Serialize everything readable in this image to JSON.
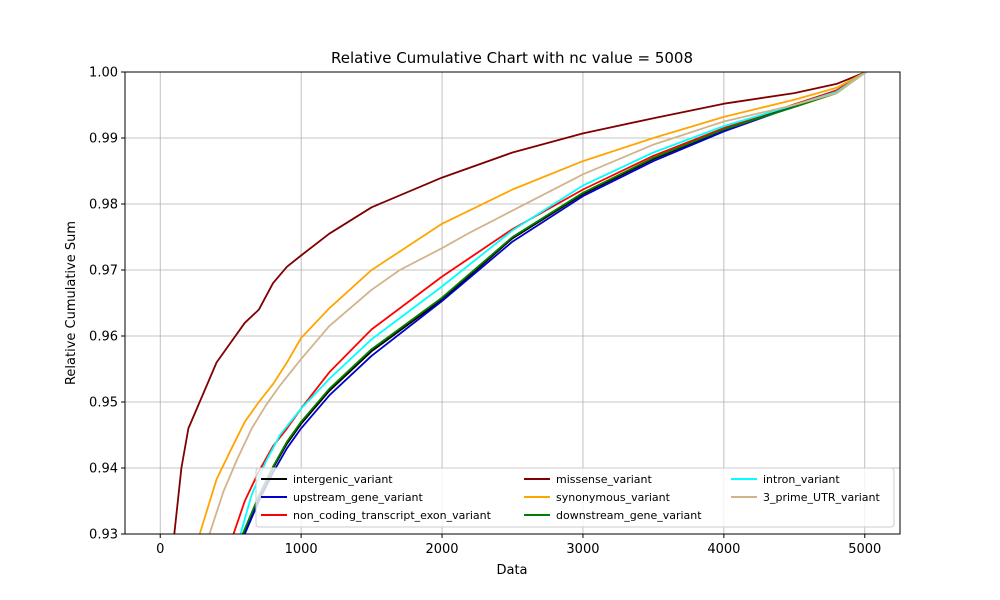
{
  "chart_data": {
    "type": "line",
    "title": "Relative Cumulative Chart with nc value = 5008",
    "xlabel": "Data",
    "ylabel": "Relative Cumulative Sum",
    "xlim": [
      -250,
      5250
    ],
    "ylim": [
      0.93,
      1.0
    ],
    "xticks": [
      0,
      1000,
      2000,
      3000,
      4000,
      5000
    ],
    "xtick_labels": [
      "0",
      "1000",
      "2000",
      "3000",
      "4000",
      "5000"
    ],
    "yticks": [
      0.93,
      0.94,
      0.95,
      0.96,
      0.97,
      0.98,
      0.99,
      1.0
    ],
    "ytick_labels": [
      "0.93",
      "0.94",
      "0.95",
      "0.96",
      "0.97",
      "0.98",
      "0.99",
      "1.00"
    ],
    "grid": true,
    "legend_location": "lower right",
    "legend_columns": 3,
    "series": [
      {
        "name": "intergenic_variant",
        "color": "#000000",
        "x": [
          590,
          700,
          800,
          900,
          1000,
          1200,
          1500,
          2000,
          2500,
          3000,
          3500,
          4000,
          4500,
          4800,
          5008
        ],
        "y": [
          0.93,
          0.9356,
          0.94,
          0.9437,
          0.9467,
          0.9517,
          0.9577,
          0.9655,
          0.9748,
          0.9815,
          0.9868,
          0.9912,
          0.995,
          0.9972,
          1.0
        ]
      },
      {
        "name": "upstream_gene_variant",
        "color": "#0000cc",
        "x": [
          600,
          700,
          800,
          900,
          1000,
          1200,
          1500,
          2000,
          2500,
          3000,
          3500,
          4000,
          4500,
          4800,
          5008
        ],
        "y": [
          0.93,
          0.935,
          0.9393,
          0.943,
          0.946,
          0.951,
          0.957,
          0.9653,
          0.9743,
          0.9812,
          0.9865,
          0.991,
          0.9948,
          0.997,
          1.0
        ]
      },
      {
        "name": "non_coding_transcript_exon_variant",
        "color": "#ff0000",
        "x": [
          520,
          600,
          700,
          800,
          900,
          1000,
          1200,
          1500,
          2000,
          2500,
          3000,
          3500,
          4000,
          4500,
          4800,
          5008
        ],
        "y": [
          0.93,
          0.935,
          0.9395,
          0.9433,
          0.946,
          0.949,
          0.9545,
          0.961,
          0.969,
          0.9762,
          0.9822,
          0.9873,
          0.9915,
          0.9951,
          0.9972,
          1.0
        ]
      },
      {
        "name": "missense_variant",
        "color": "#800000",
        "x": [
          100,
          150,
          200,
          300,
          400,
          500,
          600,
          700,
          800,
          900,
          1000,
          1200,
          1500,
          2000,
          2500,
          3000,
          3500,
          4000,
          4500,
          4800,
          5008
        ],
        "y": [
          0.93,
          0.94,
          0.946,
          0.951,
          0.956,
          0.959,
          0.962,
          0.964,
          0.968,
          0.9705,
          0.9722,
          0.9755,
          0.9795,
          0.984,
          0.9878,
          0.9907,
          0.993,
          0.9952,
          0.9968,
          0.9982,
          1.0
        ]
      },
      {
        "name": "synonymous_variant",
        "color": "#ffa500",
        "x": [
          280,
          400,
          500,
          600,
          700,
          800,
          900,
          1000,
          1200,
          1500,
          2000,
          2500,
          3000,
          3500,
          4000,
          4500,
          4800,
          5008
        ],
        "y": [
          0.93,
          0.9383,
          0.9427,
          0.947,
          0.95,
          0.9527,
          0.956,
          0.9597,
          0.9642,
          0.97,
          0.977,
          0.9822,
          0.9865,
          0.99,
          0.9932,
          0.9958,
          0.9976,
          1.0
        ]
      },
      {
        "name": "downstream_gene_variant",
        "color": "#008000",
        "x": [
          585,
          700,
          800,
          900,
          1000,
          1200,
          1500,
          2000,
          2500,
          3000,
          3500,
          4000,
          4500,
          4800,
          5008
        ],
        "y": [
          0.93,
          0.9358,
          0.9402,
          0.944,
          0.947,
          0.952,
          0.958,
          0.9658,
          0.975,
          0.9817,
          0.987,
          0.9913,
          0.9947,
          0.9968,
          1.0
        ]
      },
      {
        "name": "intron_variant",
        "color": "#00ffff",
        "x": [
          570,
          650,
          750,
          850,
          1000,
          1200,
          1500,
          2000,
          2500,
          3000,
          3500,
          4000,
          4500,
          4800,
          5008
        ],
        "y": [
          0.93,
          0.936,
          0.941,
          0.945,
          0.949,
          0.9535,
          0.9595,
          0.9675,
          0.976,
          0.9828,
          0.9878,
          0.9918,
          0.995,
          0.997,
          1.0
        ]
      },
      {
        "name": "3_prime_UTR_variant",
        "color": "#d2b48c",
        "x": [
          350,
          450,
          550,
          650,
          750,
          850,
          1000,
          1200,
          1500,
          1700,
          2000,
          2200,
          2500,
          3000,
          3500,
          4000,
          4500,
          4800,
          5008
        ],
        "y": [
          0.93,
          0.9365,
          0.9415,
          0.946,
          0.9495,
          0.9525,
          0.9565,
          0.9615,
          0.967,
          0.97,
          0.9733,
          0.9757,
          0.979,
          0.9845,
          0.989,
          0.9925,
          0.995,
          0.9968,
          1.0
        ]
      }
    ]
  }
}
